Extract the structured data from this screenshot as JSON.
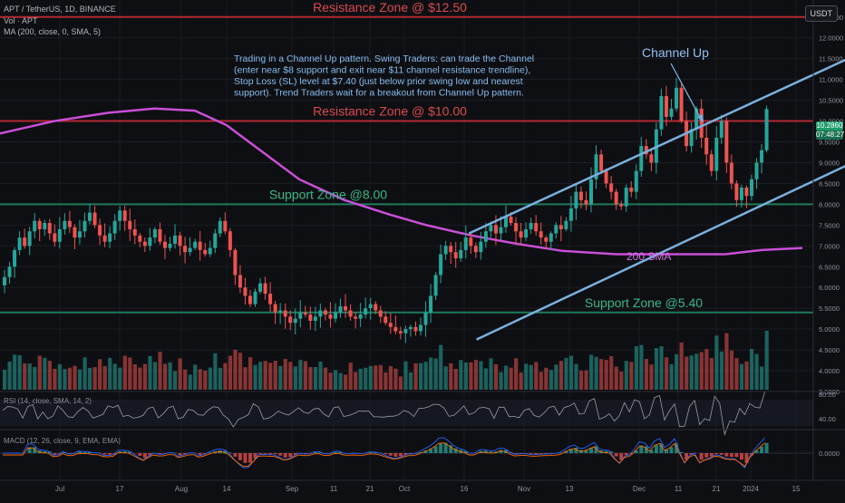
{
  "header": {
    "symbol_line": "APT / TetherUS, 1D, BINANCE",
    "vol_line": "Vol · APT",
    "ma_line": "MA (200, close, 0, SMA, 5)",
    "rsi_line": "RSI (14, close, SMA, 14, 2)",
    "macd_line": "MACD (12, 26, close, 9, EMA, EMA)",
    "unit_button": "USDT"
  },
  "price_tag": {
    "price": "10.2860",
    "countdown": "07:48:27"
  },
  "colors": {
    "up": "#26a69a",
    "down": "#ef5350",
    "sma": "#c84fd8",
    "resistance": "#b22833",
    "support": "#1f7a5a",
    "channel": "#7ab0dd"
  },
  "chart_data": {
    "type": "candlestick",
    "title": "APT / TetherUS, 1D, BINANCE",
    "y_axis": {
      "ticks": [
        "12.5000",
        "12.0000",
        "11.5000",
        "11.0000",
        "10.5000",
        "10.0000",
        "9.5000",
        "9.0000",
        "8.5000",
        "8.0000",
        "7.5000",
        "7.0000",
        "6.5000",
        "6.0000",
        "5.5000",
        "5.0000",
        "4.5000",
        "4.0000",
        "3.5000"
      ],
      "ylim": [
        3.5,
        12.8
      ]
    },
    "x_axis": {
      "ticks": [
        "Jul",
        "17",
        "Aug",
        "14",
        "Sep",
        "11",
        "21",
        "Oct",
        "16",
        "Nov",
        "13",
        "Dec",
        "11",
        "21",
        "2024",
        "15"
      ]
    },
    "closes_by_day": [
      6.25,
      6.5,
      6.9,
      7.2,
      7.0,
      7.35,
      7.6,
      7.4,
      7.55,
      7.3,
      7.1,
      7.4,
      7.6,
      7.45,
      7.2,
      7.35,
      7.6,
      7.8,
      7.5,
      7.25,
      7.1,
      7.3,
      7.6,
      7.85,
      7.6,
      7.4,
      7.25,
      7.1,
      7.0,
      7.2,
      7.4,
      7.1,
      6.95,
      7.05,
      7.25,
      7.0,
      6.85,
      6.95,
      7.1,
      6.9,
      6.8,
      6.95,
      7.3,
      7.6,
      7.35,
      6.9,
      6.3,
      6.0,
      5.8,
      5.6,
      5.9,
      6.1,
      5.85,
      5.6,
      5.4,
      5.45,
      5.3,
      5.15,
      5.25,
      5.4,
      5.35,
      5.2,
      5.3,
      5.45,
      5.35,
      5.25,
      5.4,
      5.55,
      5.45,
      5.3,
      5.25,
      5.35,
      5.5,
      5.6,
      5.45,
      5.3,
      5.15,
      5.05,
      4.95,
      4.9,
      5.0,
      5.05,
      4.95,
      5.1,
      5.4,
      5.8,
      6.3,
      6.8,
      7.0,
      6.85,
      6.7,
      6.9,
      7.2,
      7.0,
      6.85,
      7.1,
      7.35,
      7.5,
      7.3,
      7.45,
      7.7,
      7.55,
      7.35,
      7.2,
      7.4,
      7.55,
      7.35,
      7.2,
      7.1,
      7.3,
      7.5,
      7.4,
      7.6,
      7.9,
      8.3,
      8.1,
      8.0,
      8.6,
      9.2,
      8.8,
      8.5,
      8.3,
      8.0,
      7.95,
      8.4,
      8.3,
      8.8,
      9.4,
      9.2,
      9.0,
      9.8,
      10.6,
      10.1,
      10.3,
      10.8,
      10.0,
      9.4,
      9.8,
      10.3,
      9.6,
      9.2,
      8.8,
      9.6,
      10.0,
      9.0,
      8.5,
      8.1,
      8.4,
      8.2,
      8.6,
      9.0,
      9.3,
      10.29
    ],
    "sma200": [
      [
        0,
        9.7
      ],
      [
        60,
        10.0
      ],
      [
        120,
        10.2
      ],
      [
        170,
        10.3
      ],
      [
        215,
        10.25
      ],
      [
        250,
        9.9
      ],
      [
        290,
        9.25
      ],
      [
        330,
        8.6
      ],
      [
        380,
        8.1
      ],
      [
        430,
        7.75
      ],
      [
        470,
        7.5
      ],
      [
        520,
        7.25
      ],
      [
        570,
        7.05
      ],
      [
        620,
        6.88
      ],
      [
        680,
        6.8
      ],
      [
        750,
        6.8
      ],
      [
        800,
        6.8
      ],
      [
        840,
        6.9
      ],
      [
        885,
        6.95
      ]
    ],
    "rsi": {
      "ticks": [
        "80.00",
        "40.00"
      ]
    },
    "macd": {
      "ticks": [
        "0.0000"
      ]
    },
    "annotations": [
      {
        "id": "resistance_high",
        "text": "Resistance Zone @ $12.50",
        "value": 12.5
      },
      {
        "id": "resistance_mid",
        "text": "Resistance Zone @ $10.00",
        "value": 10.0
      },
      {
        "id": "support_high",
        "text": "Support Zone @8.00",
        "value": 8.0
      },
      {
        "id": "support_low",
        "text": "Support Zone @5.40",
        "value": 5.4
      },
      {
        "id": "sma_label",
        "text": "200 SMA"
      },
      {
        "id": "channel_label",
        "text": "Channel Up"
      },
      {
        "id": "commentary",
        "lines": [
          "Trading in a Channel Up pattern. Swing Traders: can trade the Channel",
          "(enter near $8 support and exit near $11 channel resistance trendline),",
          "Stop Loss (SL) level at $7.40 (just below prior swing low and nearest",
          "support). Trend Traders wait for a breakout from Channel Up pattern."
        ]
      }
    ]
  }
}
